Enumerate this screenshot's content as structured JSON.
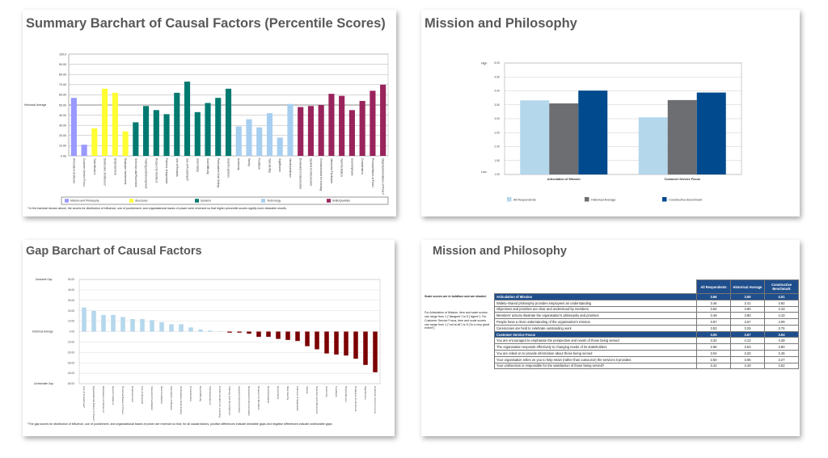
{
  "slides": {
    "summary": {
      "title": "Summary Barchart of Causal Factors (Percentile Scores)",
      "y_ticks": [
        "0.00",
        "10.00",
        "20.00",
        "30.00",
        "40.00",
        "50.00",
        "60.00",
        "70.00",
        "80.00",
        "90.00",
        "100.0"
      ],
      "historical_label": "Historical Average",
      "legend": [
        {
          "label": "Mission and Philosophy",
          "color": "#9999ff"
        },
        {
          "label": "Structures",
          "color": "#ffff33"
        },
        {
          "label": "Systems",
          "color": "#007a70"
        },
        {
          "label": "Technology",
          "color": "#a6cef0"
        },
        {
          "label": "Skills/Qualities",
          "color": "#99245c"
        }
      ],
      "note": "* In the barchart shown above, the scores for distribution of influence, use of punishment, and organizational bases of power were reversed so that higher percentile scores signify more desirable results."
    },
    "mission_chart": {
      "title": "Mission and Philosophy",
      "high_label": "High",
      "low_label": "Low",
      "y_ticks": [
        "1.00",
        "1.50",
        "2.00",
        "2.50",
        "3.00",
        "3.50",
        "4.00",
        "4.50",
        "5.00"
      ],
      "legend": [
        {
          "label": "All Respondents",
          "color": "#b4d7ec"
        },
        {
          "label": "Historical Average",
          "color": "#6d6e71"
        },
        {
          "label": "Constructive Benchmark",
          "color": "#004a8d"
        }
      ]
    },
    "gap": {
      "title": "Gap Barchart of Causal Factors",
      "desirable_label": "Desirable Gap",
      "historical_label": "Historical Average",
      "undesirable_label": "Undesirable Gap",
      "y_ticks": [
        "-50.00",
        "-40.00",
        "-30.00",
        "-20.00",
        "-10.00",
        "0.00",
        "10.00",
        "20.00",
        "30.00",
        "40.00",
        "50.00"
      ],
      "note": "*The gap scores for distribution of influence, use of punishment, and organizational bases of power are reversed so that, for all causal factors, positive differences indicate desirable gaps and negative differences indicate undesirable gaps."
    },
    "mission_table": {
      "title": "Mission and Philosophy",
      "side_note_1": "Scale scores are in boldface and are shaded.",
      "side_note_2": "For Articulation of Mission, item and scale scores can range from 1 (\"disagree\") to 5 (\"agree\"). For Customer Service Focus, item and scale scores can range from 1 (\"not at all\") to 5 (\"to a very great extent\").",
      "columns": [
        "All Respondents",
        "Historical Average",
        "Constructive Benchmark"
      ],
      "sections": [
        {
          "label": "Articulation of Mission",
          "scores": [
            "3.66",
            "3.55",
            "4.01"
          ],
          "items": [
            {
              "text": "Widely-shared philosophy provides employees an understanding",
              "scores": [
                "3.46",
                "3.41",
                "3.92"
              ]
            },
            {
              "text": "Objectives and priorities are clear and understood by members",
              "scores": [
                "3.84",
                "3.80",
                "4.33"
              ]
            },
            {
              "text": "Members' actions illustrate the organisation's philosophy and priorities",
              "scores": [
                "3.48",
                "3.80",
                "4.10"
              ]
            },
            {
              "text": "People have a clear understanding of the organisation's mission",
              "scores": [
                "3.97",
                "3.67",
                "4.09"
              ]
            },
            {
              "text": "Ceremonies are held to celebrate outstanding work",
              "scores": [
                "3.53",
                "3.25",
                "3.76"
              ]
            }
          ]
        },
        {
          "label": "Customer Service Focus",
          "scores": [
            "3.05",
            "3.67",
            "3.94"
          ],
          "items": [
            {
              "text": "You are encouraged to emphasise the perspective and needs of those being served",
              "scores": [
                "3.32",
                "4.13",
                "4.39"
              ]
            },
            {
              "text": "The organisation responds effectively to changing needs of its stakeholders",
              "scores": [
                "2.96",
                "3.53",
                "3.80"
              ]
            },
            {
              "text": "You are relied on to provide information about those being served",
              "scores": [
                "3.04",
                "3.20",
                "3.45"
              ]
            },
            {
              "text": "Your organisation relies on you to help retain (rather than outsource) the services it provides",
              "scores": [
                "2.50",
                "3.05",
                "3.27"
              ]
            },
            {
              "text": "Your unit/section is responsible for the satisfaction of those being served?",
              "scores": [
                "3.42",
                "4.40",
                "4.52"
              ]
            }
          ]
        }
      ]
    }
  },
  "chart_data": [
    {
      "type": "bar",
      "title": "Summary Barchart of Causal Factors (Percentile Scores)",
      "xlabel": "",
      "ylabel": "Historical Average",
      "ylim": [
        0,
        100
      ],
      "grid": true,
      "legend_position": "bottom",
      "categories": [
        "Articulation of Mission",
        "Customer Service Focus",
        "Total Influence",
        "Distribution of Influence*",
        "Empowerment",
        "Employee Involvement",
        "Selection and Placement",
        "Training and Development",
        "Respect for Members",
        "Fairness of Appraisals",
        "Use of Rewards",
        "Use of Punishment*",
        "Goal Clarity",
        "Goal Difficulty",
        "Participative Goal Setting",
        "Goal Acceptance",
        "Autonomy",
        "Variety",
        "Feedback",
        "Task Identity",
        "Significance",
        "Interdependence",
        "Downward Communication",
        "Upward Communication",
        "Communication for Learning",
        "Interaction Facilitation",
        "Task Facilitation",
        "Goal Emphasis",
        "Consideration",
        "Personal Bases of Power",
        "Organizational Bases of Power*"
      ],
      "groups": [
        "Mission and Philosophy",
        "Mission and Philosophy",
        "Structures",
        "Structures",
        "Structures",
        "Structures",
        "Systems",
        "Systems",
        "Systems",
        "Systems",
        "Systems",
        "Systems",
        "Systems",
        "Systems",
        "Systems",
        "Systems",
        "Technology",
        "Technology",
        "Technology",
        "Technology",
        "Technology",
        "Technology",
        "Skills/Qualities",
        "Skills/Qualities",
        "Skills/Qualities",
        "Skills/Qualities",
        "Skills/Qualities",
        "Skills/Qualities",
        "Skills/Qualities",
        "Skills/Qualities",
        "Skills/Qualities"
      ],
      "values": [
        57,
        11,
        27,
        66,
        62,
        24,
        33,
        49,
        45,
        41,
        62,
        73,
        43,
        52,
        57,
        66,
        29,
        36,
        28,
        42,
        18,
        51,
        48,
        49,
        50,
        61,
        59,
        45,
        54,
        64,
        70
      ]
    },
    {
      "type": "bar",
      "title": "Mission and Philosophy",
      "ylim": [
        1,
        5
      ],
      "grid": true,
      "legend_position": "bottom",
      "categories": [
        "Articulation of Mission",
        "Customer Service Focus"
      ],
      "series": [
        {
          "name": "All Respondents",
          "values": [
            3.66,
            3.05
          ]
        },
        {
          "name": "Historical Average",
          "values": [
            3.55,
            3.67
          ]
        },
        {
          "name": "Constructive Benchmark",
          "values": [
            4.01,
            3.94
          ]
        }
      ]
    },
    {
      "type": "bar",
      "title": "Gap Barchart of Causal Factors",
      "ylim": [
        -50,
        50
      ],
      "grid": true,
      "categories": [
        "Use of Punishment*",
        "Organizational Bases of Power*",
        "Distribution of Influence*",
        "Goal Acceptance",
        "Personal Bases of Power",
        "Empowerment",
        "Use of Rewards",
        "Interaction Facilitation",
        "Task Facilitation",
        "Articulation of Mission",
        "Participative Goal Setting",
        "Consideration",
        "Goal Difficulty",
        "Interdependence",
        "Communication for Learning",
        "Training and Development",
        "Upward Communication",
        "Downward Communication",
        "Respect for Members",
        "Goal Emphasis",
        "Goal Clarity",
        "Task Identity",
        "Fairness of Appraisals",
        "Variety",
        "Selection and Placement",
        "Autonomy",
        "Feedback",
        "Total Influence",
        "Employee Involvement",
        "Significance",
        "Customer Service Focus"
      ],
      "values": [
        23,
        20,
        16,
        16,
        14,
        12,
        12,
        11,
        9,
        7,
        7,
        4,
        2,
        1,
        0,
        -1,
        -1,
        -2,
        -5,
        -5,
        -7,
        -8,
        -9,
        -14,
        -17,
        -21,
        -22,
        -23,
        -26,
        -32,
        -39
      ]
    }
  ]
}
